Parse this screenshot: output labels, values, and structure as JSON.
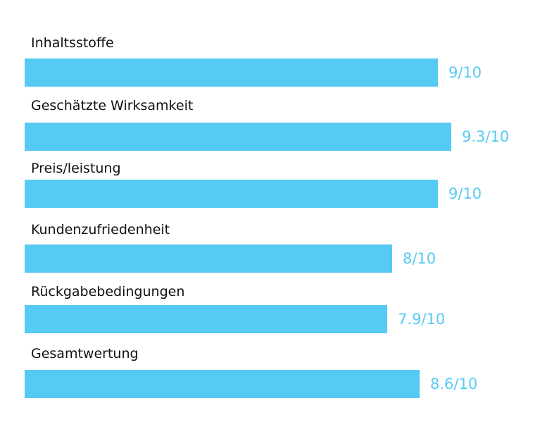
{
  "chart_data": {
    "type": "bar",
    "orientation": "horizontal",
    "categories": [
      "Inhaltsstoffe",
      "Geschätzte Wirksamkeit",
      "Preis/leistung",
      "Kundenzufriedenheit",
      "Rückgabebedingungen",
      "Gesamtwertung"
    ],
    "values": [
      9,
      9.3,
      9,
      8,
      7.9,
      8.6
    ],
    "value_labels": [
      "9/10",
      "9.3/10",
      "9/10",
      "8/10",
      "7.9/10",
      "8.6/10"
    ],
    "xlim": [
      0,
      10
    ],
    "grid": false,
    "legend": "none",
    "bar_color": "#55CAF3",
    "value_label_color": "#55CAF3",
    "label_color": "#111111"
  }
}
